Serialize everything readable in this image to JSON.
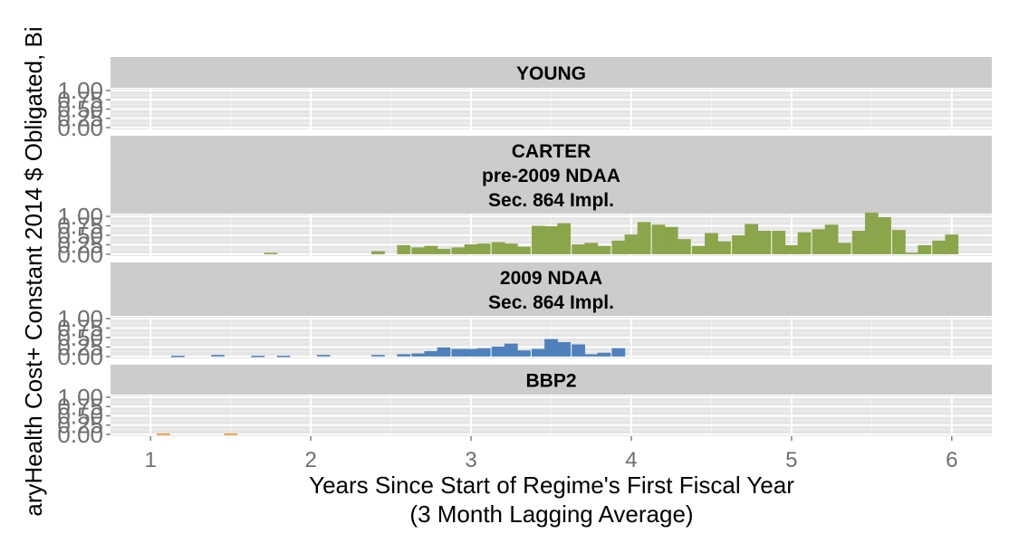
{
  "chart_data": {
    "type": "bar",
    "xlabel": "Years Since Start of Regime's First Fiscal Year",
    "xlabel_line2": "(3 Month Lagging Average)",
    "ylabel": "aryHealth Cost+ Constant 2014 $ Obligated, Bi",
    "xlim": [
      0.75,
      6.25
    ],
    "x_ticks": [
      "1",
      "2",
      "3",
      "4",
      "5",
      "6"
    ],
    "y_ticks": [
      "0.00",
      "0.25",
      "0.50",
      "0.75",
      "1.00"
    ],
    "ylim": [
      -0.05,
      1.05
    ],
    "bin_width": 0.0833,
    "grid": true,
    "panels": [
      {
        "name": "YOUNG",
        "strip": [
          "YOUNG"
        ],
        "color": "#000000",
        "bars": []
      },
      {
        "name": "CARTER pre-2009 NDAA Sec. 864 Impl.",
        "strip": [
          "CARTER",
          "pre-2009 NDAA",
          "Sec. 864 Impl."
        ],
        "color": "#8ba54b",
        "bars": [
          {
            "x": 1.75,
            "y": 0.04
          },
          {
            "x": 2.42,
            "y": 0.08
          },
          {
            "x": 2.58,
            "y": 0.24
          },
          {
            "x": 2.67,
            "y": 0.18
          },
          {
            "x": 2.75,
            "y": 0.22
          },
          {
            "x": 2.83,
            "y": 0.14
          },
          {
            "x": 2.92,
            "y": 0.18
          },
          {
            "x": 3.0,
            "y": 0.26
          },
          {
            "x": 3.08,
            "y": 0.28
          },
          {
            "x": 3.17,
            "y": 0.32
          },
          {
            "x": 3.25,
            "y": 0.28
          },
          {
            "x": 3.33,
            "y": 0.2
          },
          {
            "x": 3.42,
            "y": 0.75
          },
          {
            "x": 3.5,
            "y": 0.74
          },
          {
            "x": 3.58,
            "y": 0.82
          },
          {
            "x": 3.67,
            "y": 0.26
          },
          {
            "x": 3.75,
            "y": 0.3
          },
          {
            "x": 3.83,
            "y": 0.22
          },
          {
            "x": 3.92,
            "y": 0.36
          },
          {
            "x": 4.0,
            "y": 0.52
          },
          {
            "x": 4.08,
            "y": 0.85
          },
          {
            "x": 4.17,
            "y": 0.78
          },
          {
            "x": 4.25,
            "y": 0.72
          },
          {
            "x": 4.33,
            "y": 0.4
          },
          {
            "x": 4.42,
            "y": 0.22
          },
          {
            "x": 4.5,
            "y": 0.56
          },
          {
            "x": 4.58,
            "y": 0.34
          },
          {
            "x": 4.67,
            "y": 0.5
          },
          {
            "x": 4.75,
            "y": 0.8
          },
          {
            "x": 4.83,
            "y": 0.62
          },
          {
            "x": 4.92,
            "y": 0.62
          },
          {
            "x": 5.0,
            "y": 0.24
          },
          {
            "x": 5.08,
            "y": 0.58
          },
          {
            "x": 5.17,
            "y": 0.66
          },
          {
            "x": 5.25,
            "y": 0.78
          },
          {
            "x": 5.33,
            "y": 0.3
          },
          {
            "x": 5.42,
            "y": 0.62
          },
          {
            "x": 5.5,
            "y": 1.1
          },
          {
            "x": 5.58,
            "y": 0.98
          },
          {
            "x": 5.67,
            "y": 0.64
          },
          {
            "x": 5.75,
            "y": 0.04
          },
          {
            "x": 5.83,
            "y": 0.24
          },
          {
            "x": 5.92,
            "y": 0.36
          },
          {
            "x": 6.0,
            "y": 0.52
          }
        ]
      },
      {
        "name": "2009 NDAA Sec. 864 Impl.",
        "strip": [
          "2009 NDAA",
          "Sec. 864 Impl."
        ],
        "color": "#4f81bd",
        "bars": [
          {
            "x": 1.17,
            "y": 0.02
          },
          {
            "x": 1.42,
            "y": 0.04
          },
          {
            "x": 1.67,
            "y": 0.02
          },
          {
            "x": 1.83,
            "y": 0.02
          },
          {
            "x": 2.08,
            "y": 0.04
          },
          {
            "x": 2.42,
            "y": 0.04
          },
          {
            "x": 2.58,
            "y": 0.06
          },
          {
            "x": 2.67,
            "y": 0.08
          },
          {
            "x": 2.75,
            "y": 0.14
          },
          {
            "x": 2.83,
            "y": 0.24
          },
          {
            "x": 2.92,
            "y": 0.2
          },
          {
            "x": 3.0,
            "y": 0.2
          },
          {
            "x": 3.08,
            "y": 0.22
          },
          {
            "x": 3.17,
            "y": 0.26
          },
          {
            "x": 3.25,
            "y": 0.34
          },
          {
            "x": 3.33,
            "y": 0.16
          },
          {
            "x": 3.42,
            "y": 0.2
          },
          {
            "x": 3.5,
            "y": 0.46
          },
          {
            "x": 3.58,
            "y": 0.38
          },
          {
            "x": 3.67,
            "y": 0.32
          },
          {
            "x": 3.75,
            "y": 0.06
          },
          {
            "x": 3.83,
            "y": 0.1
          },
          {
            "x": 3.92,
            "y": 0.22
          }
        ]
      },
      {
        "name": "BBP2",
        "strip": [
          "BBP2"
        ],
        "color": "#e58c17",
        "bars": [
          {
            "x": 1.08,
            "y": 0.02
          },
          {
            "x": 1.5,
            "y": 0.02
          }
        ]
      }
    ]
  }
}
